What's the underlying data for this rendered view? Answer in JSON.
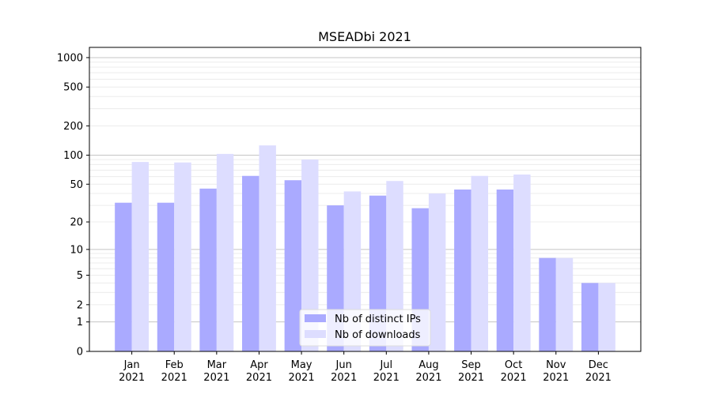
{
  "chart_data": {
    "type": "bar",
    "title": "MSEADbi 2021",
    "xlabel": "",
    "ylabel": "",
    "yscale": "log10(y+1)",
    "ylim": [
      0,
      1272
    ],
    "yticks": [
      0,
      1,
      2,
      5,
      10,
      20,
      50,
      100,
      200,
      500,
      1000
    ],
    "categories": [
      "Jan\n2021",
      "Feb\n2021",
      "Mar\n2021",
      "Apr\n2021",
      "May\n2021",
      "Jun\n2021",
      "Jul\n2021",
      "Aug\n2021",
      "Sep\n2021",
      "Oct\n2021",
      "Nov\n2021",
      "Dec\n2021"
    ],
    "series": [
      {
        "name": "Nb of distinct IPs",
        "color": "#aaaaff",
        "values": [
          32,
          32,
          45,
          61,
          55,
          30,
          38,
          28,
          44,
          44,
          8,
          4
        ]
      },
      {
        "name": "Nb of downloads",
        "color": "#ddddff",
        "values": [
          85,
          84,
          103,
          126,
          90,
          42,
          54,
          40,
          61,
          63,
          8,
          4
        ]
      }
    ],
    "grid": true,
    "legend": "bottom-center"
  }
}
